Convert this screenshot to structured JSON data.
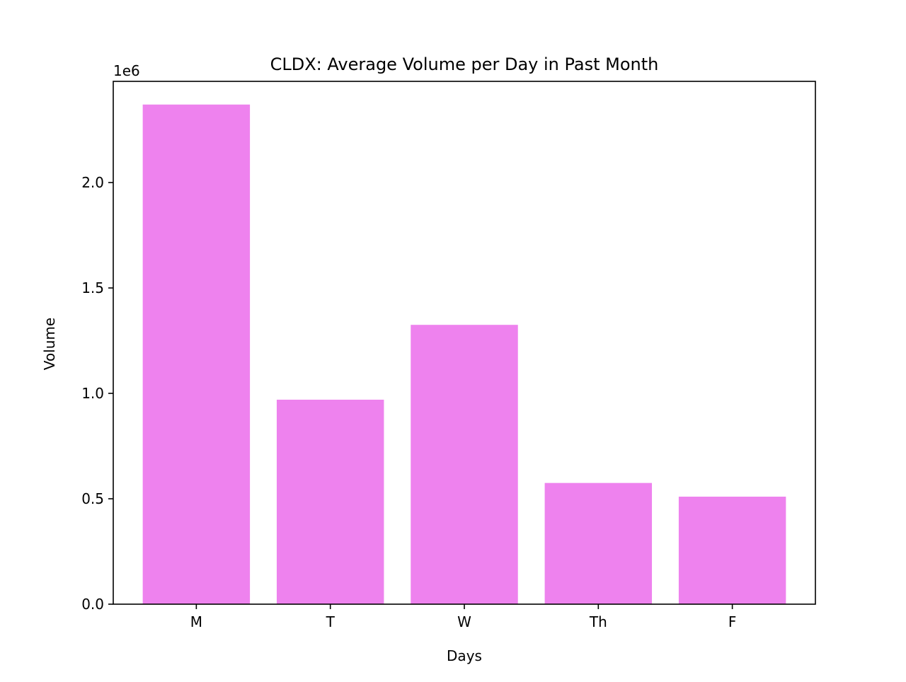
{
  "chart_data": {
    "type": "bar",
    "title": "CLDX: Average Volume per Day in Past Month",
    "xlabel": "Days",
    "ylabel": "Volume",
    "y_offset_label": "1e6",
    "categories": [
      "M",
      "T",
      "W",
      "Th",
      "F"
    ],
    "values": [
      2370000,
      970000,
      1325000,
      575000,
      510000
    ],
    "ylim": [
      0,
      2480000
    ],
    "yticks": [
      0,
      500000,
      1000000,
      1500000,
      2000000
    ],
    "ytick_labels": [
      "0.0",
      "0.5",
      "1.0",
      "1.5",
      "2.0"
    ],
    "bar_color": "#ee82ee",
    "grid": false,
    "legend": "none"
  }
}
